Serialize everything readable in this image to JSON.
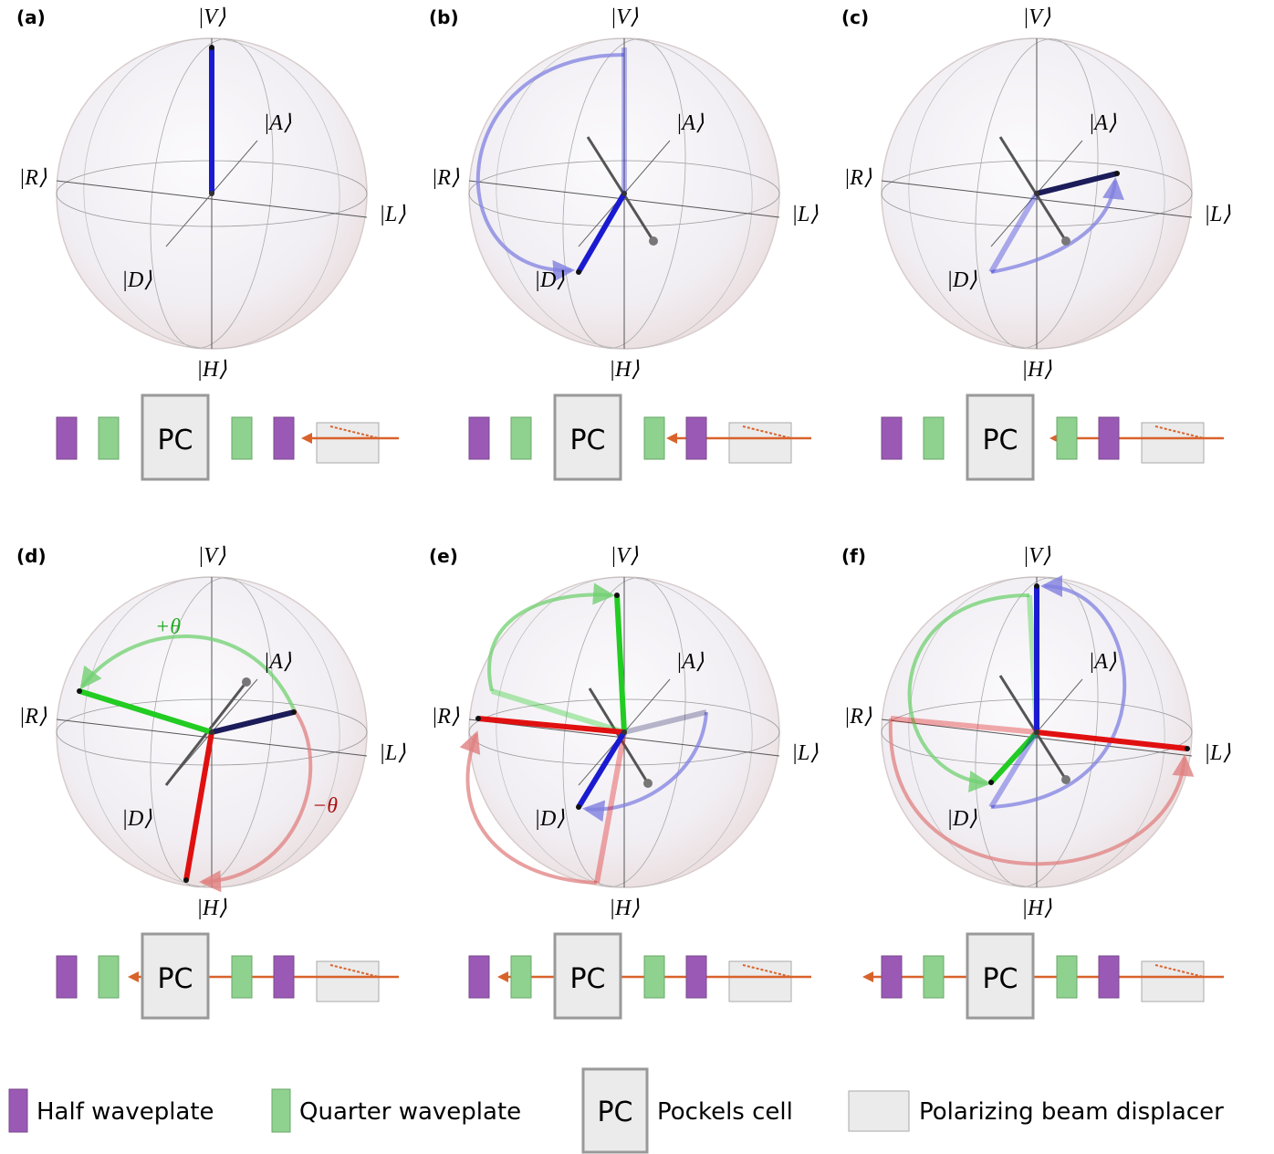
{
  "panels": [
    {
      "label": "(a)",
      "states": {
        "V": "|V⟩",
        "A": "|A⟩",
        "R": "|R⟩",
        "L": "|L⟩",
        "D": "|D⟩",
        "H": "|H⟩"
      },
      "pc": "PC"
    },
    {
      "label": "(b)",
      "states": {
        "V": "|V⟩",
        "A": "|A⟩",
        "R": "|R⟩",
        "L": "|L⟩",
        "D": "|D⟩",
        "H": "|H⟩"
      },
      "pc": "PC"
    },
    {
      "label": "(c)",
      "states": {
        "V": "|V⟩",
        "A": "|A⟩",
        "R": "|R⟩",
        "L": "|L⟩",
        "D": "|D⟩",
        "H": "|H⟩"
      },
      "pc": "PC"
    },
    {
      "label": "(d)",
      "states": {
        "V": "|V⟩",
        "A": "|A⟩",
        "R": "|R⟩",
        "L": "|L⟩",
        "D": "|D⟩",
        "H": "|H⟩"
      },
      "pc": "PC",
      "annotations": [
        "+θ",
        "−θ"
      ]
    },
    {
      "label": "(e)",
      "states": {
        "V": "|V⟩",
        "A": "|A⟩",
        "R": "|R⟩",
        "L": "|L⟩",
        "D": "|D⟩",
        "H": "|H⟩"
      },
      "pc": "PC"
    },
    {
      "label": "(f)",
      "states": {
        "V": "|V⟩",
        "A": "|A⟩",
        "R": "|R⟩",
        "L": "|L⟩",
        "D": "|D⟩",
        "H": "|H⟩"
      },
      "pc": "PC"
    }
  ],
  "legend": [
    {
      "label": "Half waveplate"
    },
    {
      "label": "Quarter waveplate"
    },
    {
      "symbol": "PC",
      "label": "Pockels cell"
    },
    {
      "label": "Polarizing beam displacer"
    }
  ]
}
